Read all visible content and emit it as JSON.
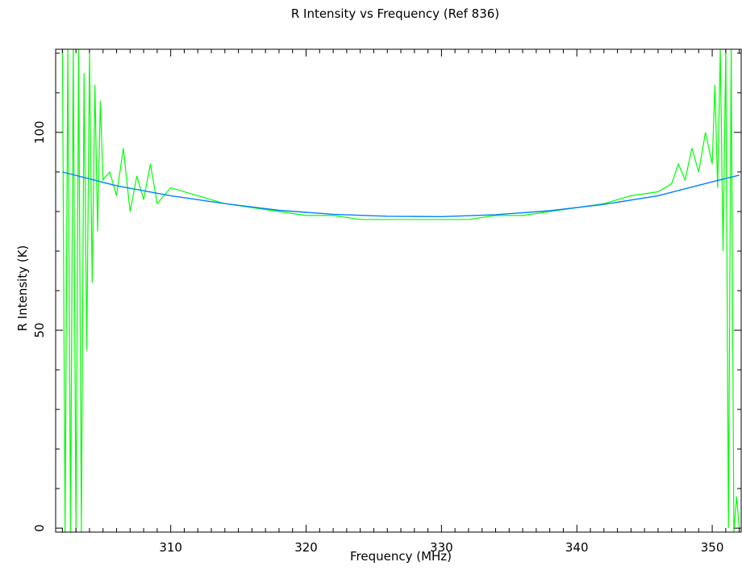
{
  "chart_data": {
    "type": "line",
    "title": "R Intensity vs Frequency (Ref 836)",
    "xlabel": "Frequency (MHz)",
    "ylabel": "R Intensity (K)",
    "xlim": [
      301.5,
      352.2
    ],
    "ylim": [
      -1,
      121
    ],
    "x_ticks": [
      310,
      320,
      330,
      340,
      350
    ],
    "y_ticks": [
      0,
      50,
      100
    ],
    "grid": false,
    "colors": {
      "data": "#00ff00",
      "fit": "#0080ff",
      "axes": "#000000"
    },
    "series": [
      {
        "role": "measured spectrum",
        "x": [
          302.0,
          302.2,
          302.4,
          302.6,
          302.8,
          303.0,
          303.2,
          303.4,
          303.6,
          303.8,
          304.0,
          304.2,
          304.4,
          304.6,
          304.8,
          305.0,
          305.5,
          306.0,
          306.5,
          307.0,
          307.5,
          308.0,
          308.5,
          309.0,
          310.0,
          312.0,
          314.0,
          316.0,
          318.0,
          320.0,
          322.0,
          324.0,
          326.0,
          328.0,
          330.0,
          332.0,
          334.0,
          336.0,
          338.0,
          340.0,
          342.0,
          344.0,
          346.0,
          347.0,
          347.5,
          348.0,
          348.5,
          349.0,
          349.5,
          350.0,
          350.2,
          350.4,
          350.6,
          350.8,
          351.0,
          351.2,
          351.4,
          351.6,
          351.8,
          352.0
        ],
        "y": [
          121,
          -1,
          121,
          -1,
          121,
          -1,
          121,
          -1,
          115,
          45,
          120,
          62,
          112,
          75,
          108,
          88,
          90,
          84,
          96,
          80,
          89,
          83,
          92,
          82,
          86,
          84,
          82,
          81,
          80,
          79,
          79,
          78,
          78,
          78,
          78,
          78,
          79,
          79,
          80,
          81,
          82,
          84,
          85,
          87,
          92,
          88,
          96,
          90,
          100,
          92,
          112,
          86,
          121,
          70,
          121,
          0,
          121,
          -1,
          8,
          0
        ]
      },
      {
        "role": "polynomial fit",
        "x": [
          302,
          306,
          310,
          314,
          318,
          322,
          326,
          330,
          334,
          338,
          342,
          346,
          350,
          352
        ],
        "y": [
          90.0,
          86.5,
          84.0,
          82.0,
          80.3,
          79.3,
          78.8,
          78.7,
          79.2,
          80.2,
          81.8,
          84.0,
          87.5,
          89.2
        ]
      }
    ]
  }
}
